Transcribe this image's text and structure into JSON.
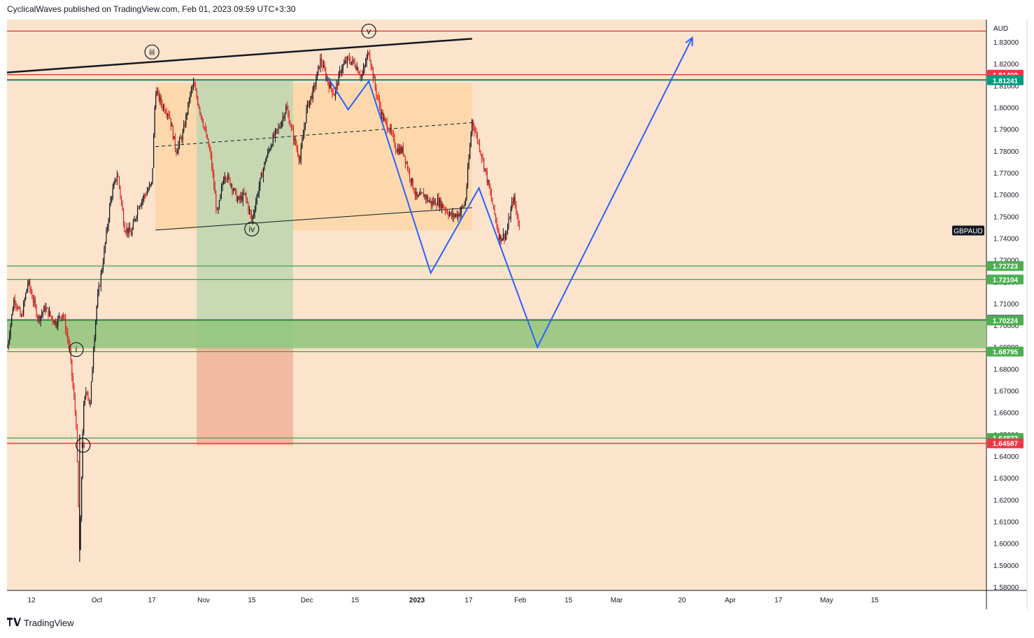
{
  "header": {
    "text": "CyclicalWaves published on TradingView.com, Feb 01, 2023 09:59 UTC+3:30"
  },
  "footer": {
    "brand": "TradingView",
    "logo": "TV-logo-icon"
  },
  "colors": {
    "background": "#fbe3cc",
    "bull": "#131722",
    "bear": "#e0221f",
    "red_line": "#e0221f",
    "green_line": "#43a047",
    "blue_path": "#2962ff",
    "zone_green": "#8fc47a",
    "box_orange": "#fcd6a6",
    "box_green": "#c3d7b1",
    "box_red": "#f6b8a1"
  },
  "chart_data": {
    "type": "candlestick",
    "symbol": "GBPAUD",
    "currency": "AUD",
    "ylim": [
      1.575,
      1.84
    ],
    "y_ticks": [
      "1.83000",
      "1.82000",
      "1.81000",
      "1.80000",
      "1.79000",
      "1.78000",
      "1.77000",
      "1.76000",
      "1.75000",
      "1.74000",
      "1.73000",
      "1.72000",
      "1.71000",
      "1.70000",
      "1.69000",
      "1.68000",
      "1.67000",
      "1.66000",
      "1.65000",
      "1.64000",
      "1.63000",
      "1.62000",
      "1.61000",
      "1.60000",
      "1.59000",
      "1.58000"
    ],
    "x_ticks": [
      {
        "label": "12",
        "date": "2022-09-12"
      },
      {
        "label": "Oct",
        "date": "2022-10-01"
      },
      {
        "label": "17",
        "date": "2022-10-17"
      },
      {
        "label": "Nov",
        "date": "2022-11-01"
      },
      {
        "label": "15",
        "date": "2022-11-15"
      },
      {
        "label": "Dec",
        "date": "2022-12-01"
      },
      {
        "label": "15",
        "date": "2022-12-15"
      },
      {
        "label": "2023",
        "date": "2023-01-02"
      },
      {
        "label": "17",
        "date": "2023-01-17"
      },
      {
        "label": "Feb",
        "date": "2023-02-01"
      },
      {
        "label": "15",
        "date": "2023-02-15"
      },
      {
        "label": "Mar",
        "date": "2023-03-01"
      },
      {
        "label": "20",
        "date": "2023-03-20"
      },
      {
        "label": "Apr",
        "date": "2023-04-03"
      },
      {
        "label": "17",
        "date": "2023-04-17"
      },
      {
        "label": "May",
        "date": "2023-05-01"
      },
      {
        "label": "15",
        "date": "2023-05-15"
      }
    ],
    "price_path": [
      [
        "2022-09-05",
        1.69
      ],
      [
        "2022-09-07",
        1.713
      ],
      [
        "2022-09-09",
        1.703
      ],
      [
        "2022-09-11",
        1.72
      ],
      [
        "2022-09-14",
        1.703
      ],
      [
        "2022-09-16",
        1.708
      ],
      [
        "2022-09-19",
        1.701
      ],
      [
        "2022-09-21",
        1.706
      ],
      [
        "2022-09-23",
        1.69
      ],
      [
        "2022-09-25",
        1.655
      ],
      [
        "2022-09-26",
        1.593
      ],
      [
        "2022-09-27",
        1.66
      ],
      [
        "2022-09-28",
        1.672
      ],
      [
        "2022-09-29",
        1.662
      ],
      [
        "2022-09-30",
        1.69
      ],
      [
        "2022-10-01",
        1.71
      ],
      [
        "2022-10-03",
        1.732
      ],
      [
        "2022-10-05",
        1.758
      ],
      [
        "2022-10-07",
        1.77
      ],
      [
        "2022-10-09",
        1.745
      ],
      [
        "2022-10-11",
        1.742
      ],
      [
        "2022-10-13",
        1.755
      ],
      [
        "2022-10-15",
        1.76
      ],
      [
        "2022-10-17",
        1.765
      ],
      [
        "2022-10-18",
        1.808
      ],
      [
        "2022-10-20",
        1.801
      ],
      [
        "2022-10-22",
        1.797
      ],
      [
        "2022-10-24",
        1.78
      ],
      [
        "2022-10-26",
        1.788
      ],
      [
        "2022-10-28",
        1.805
      ],
      [
        "2022-10-29",
        1.811
      ],
      [
        "2022-11-01",
        1.792
      ],
      [
        "2022-11-03",
        1.778
      ],
      [
        "2022-11-05",
        1.75
      ],
      [
        "2022-11-07",
        1.77
      ],
      [
        "2022-11-09",
        1.765
      ],
      [
        "2022-11-11",
        1.757
      ],
      [
        "2022-11-13",
        1.76
      ],
      [
        "2022-11-15",
        1.748
      ],
      [
        "2022-11-17",
        1.763
      ],
      [
        "2022-11-19",
        1.776
      ],
      [
        "2022-11-21",
        1.785
      ],
      [
        "2022-11-23",
        1.791
      ],
      [
        "2022-11-25",
        1.8
      ],
      [
        "2022-11-27",
        1.787
      ],
      [
        "2022-11-29",
        1.776
      ],
      [
        "2022-12-01",
        1.8
      ],
      [
        "2022-12-03",
        1.808
      ],
      [
        "2022-12-05",
        1.822
      ],
      [
        "2022-12-07",
        1.812
      ],
      [
        "2022-12-09",
        1.806
      ],
      [
        "2022-12-11",
        1.818
      ],
      [
        "2022-12-13",
        1.822
      ],
      [
        "2022-12-15",
        1.82
      ],
      [
        "2022-12-17",
        1.814
      ],
      [
        "2022-12-19",
        1.826
      ],
      [
        "2022-12-21",
        1.808
      ],
      [
        "2022-12-23",
        1.795
      ],
      [
        "2022-12-25",
        1.79
      ],
      [
        "2022-12-27",
        1.781
      ],
      [
        "2022-12-29",
        1.78
      ],
      [
        "2022-12-31",
        1.768
      ],
      [
        "2023-01-02",
        1.758
      ],
      [
        "2023-01-04",
        1.76
      ],
      [
        "2023-01-06",
        1.756
      ],
      [
        "2023-01-08",
        1.757
      ],
      [
        "2023-01-10",
        1.754
      ],
      [
        "2023-01-12",
        1.75
      ],
      [
        "2023-01-14",
        1.751
      ],
      [
        "2023-01-16",
        1.756
      ],
      [
        "2023-01-18",
        1.794
      ],
      [
        "2023-01-20",
        1.783
      ],
      [
        "2023-01-22",
        1.77
      ],
      [
        "2023-01-24",
        1.755
      ],
      [
        "2023-01-26",
        1.74
      ],
      [
        "2023-01-28",
        1.742
      ],
      [
        "2023-01-30",
        1.759
      ],
      [
        "2023-02-01",
        1.743
      ]
    ],
    "horizontal_lines": [
      {
        "price": 1.835,
        "color": "red"
      },
      {
        "price": 1.81499,
        "label": "1.81499",
        "color": "red"
      },
      {
        "price": 1.8127,
        "label": "1.81270",
        "color": "red"
      },
      {
        "price": 1.81241,
        "label": "1.81241",
        "color": "teal"
      },
      {
        "price": 1.72723,
        "label": "1.72723",
        "color": "green"
      },
      {
        "price": 1.72104,
        "label": "1.72104",
        "color": "green"
      },
      {
        "price": 1.70264,
        "label": "1.70264",
        "color": "slate"
      },
      {
        "price": 1.70224,
        "label": "1.70224",
        "color": "green"
      },
      {
        "price": 1.68795,
        "label": "1.68795",
        "color": "green"
      },
      {
        "price": 1.64832,
        "label": "1.64832",
        "color": "green"
      },
      {
        "price": 1.64587,
        "label": "1.64587",
        "color": "red"
      }
    ],
    "zone": {
      "top": 1.70264,
      "bottom": 1.6895
    },
    "wave_labels": [
      {
        "label": "i",
        "date": "2022-09-25",
        "price": 1.6889
      },
      {
        "label": "ii",
        "date": "2022-09-27",
        "price": 1.645
      },
      {
        "label": "iii",
        "date": "2022-10-17",
        "price": 1.8254
      },
      {
        "label": "iv",
        "date": "2022-11-15",
        "price": 1.7442
      },
      {
        "label": "v",
        "date": "2022-12-19",
        "price": 1.835
      }
    ],
    "projection_path": [
      [
        "2022-12-07",
        1.814
      ],
      [
        "2022-12-13",
        1.799
      ],
      [
        "2022-12-19",
        1.812
      ],
      [
        "2023-01-06",
        1.724
      ],
      [
        "2023-01-20",
        1.763
      ],
      [
        "2023-02-06",
        1.69
      ],
      [
        "2023-03-23",
        1.832
      ]
    ],
    "symbol_tag": "GBPAUD"
  }
}
